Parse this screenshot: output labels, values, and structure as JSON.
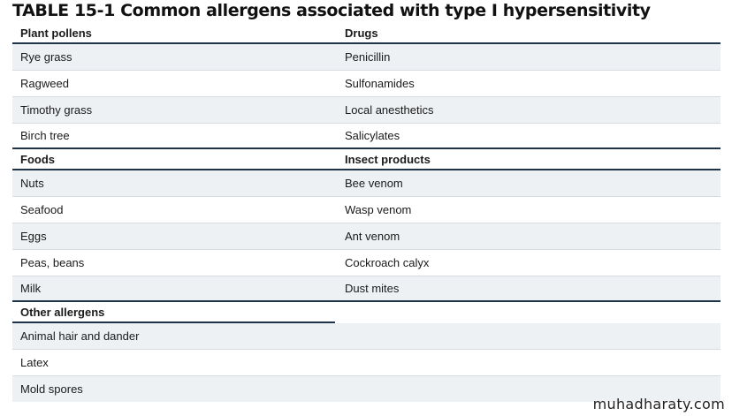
{
  "title": "TABLE 15-1 Common allergens associated with type I hypersensitivity",
  "sections": [
    {
      "left_header": "Plant pollens",
      "right_header": "Drugs",
      "rows": [
        [
          "Rye grass",
          "Penicillin"
        ],
        [
          "Ragweed",
          "Sulfonamides"
        ],
        [
          "Timothy grass",
          "Local anesthetics"
        ],
        [
          "Birch tree",
          "Salicylates"
        ]
      ]
    },
    {
      "left_header": "Foods",
      "right_header": "Insect products",
      "rows": [
        [
          "Nuts",
          "Bee venom"
        ],
        [
          "Seafood",
          "Wasp venom"
        ],
        [
          "Eggs",
          "Ant venom"
        ],
        [
          "Peas, beans",
          "Cockroach calyx"
        ],
        [
          "Milk",
          "Dust mites"
        ]
      ]
    },
    {
      "left_header": "Other allergens",
      "right_header": "",
      "rows": [
        [
          "Animal hair and dander",
          ""
        ],
        [
          "Latex",
          ""
        ],
        [
          "Mold spores",
          ""
        ]
      ]
    }
  ],
  "watermark": "muhadharaty.com"
}
